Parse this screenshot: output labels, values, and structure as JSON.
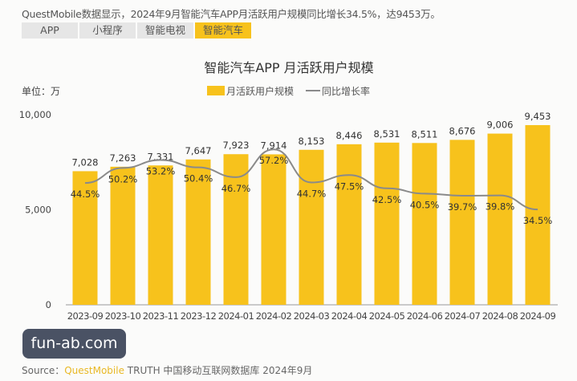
{
  "headline": "QuestMobile数据显示，2024年9月智能汽车APP月活跃用户规模同比增长34.5%，达9453万。",
  "tabs": [
    {
      "label": "APP",
      "active": false
    },
    {
      "label": "小程序",
      "active": false
    },
    {
      "label": "智能电视",
      "active": false
    },
    {
      "label": "智能汽车",
      "active": true
    }
  ],
  "watermark": "fun-ab.com",
  "source": {
    "prefix": "Source：",
    "brand": "QuestMobile",
    "rest": " TRUTH 中国移动互联网数据库 2024年9月"
  },
  "colors": {
    "bar": "#f7c21c",
    "line": "#8a8a8a",
    "active_tab": "#f7c21c"
  },
  "chart_data": {
    "type": "bar+line",
    "title": "智能汽车APP 月活跃用户规模",
    "unit_label": "单位：万",
    "categories": [
      "2023-09",
      "2023-10",
      "2023-11",
      "2023-12",
      "2024-01",
      "2024-02",
      "2024-03",
      "2024-04",
      "2024-05",
      "2024-06",
      "2024-07",
      "2024-08",
      "2024-09"
    ],
    "series": [
      {
        "name": "月活跃用户规模",
        "type": "bar",
        "values": [
          7028,
          7263,
          7331,
          7647,
          7923,
          7914,
          8153,
          8446,
          8531,
          8511,
          8676,
          9006,
          9453
        ],
        "labels": [
          "7,028",
          "7,263",
          "7,331",
          "7,647",
          "7,923",
          "7,914",
          "8,153",
          "8,446",
          "8,531",
          "8,511",
          "8,676",
          "9,006",
          "9,453"
        ]
      },
      {
        "name": "同比增长率",
        "type": "line",
        "values": [
          44.5,
          50.2,
          53.2,
          50.4,
          46.7,
          57.2,
          44.7,
          47.5,
          42.5,
          40.5,
          39.7,
          39.8,
          34.5
        ],
        "labels": [
          "44.5%",
          "50.2%",
          "53.2%",
          "50.4%",
          "46.7%",
          "57.2%",
          "44.7%",
          "47.5%",
          "42.5%",
          "40.5%",
          "39.7%",
          "39.8%",
          "34.5%"
        ]
      }
    ],
    "yticks": [
      "0",
      "5,000",
      "10,000"
    ],
    "ytick_values": [
      0,
      5000,
      10000
    ],
    "ylim": [
      0,
      10000
    ],
    "y2lim": [
      0,
      70
    ],
    "legend": "top-center",
    "grid": false
  }
}
